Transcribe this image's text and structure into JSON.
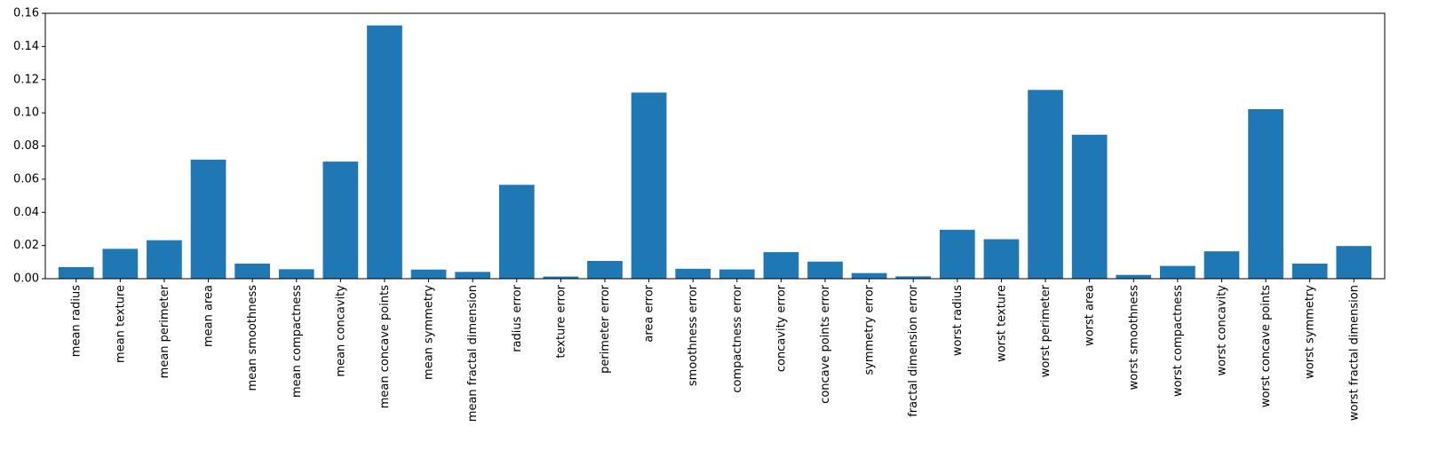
{
  "chart_data": {
    "type": "bar",
    "title": "",
    "xlabel": "",
    "ylabel": "",
    "ylim": [
      0,
      0.16
    ],
    "yticks": [
      "0.00",
      "0.02",
      "0.04",
      "0.06",
      "0.08",
      "0.10",
      "0.12",
      "0.14",
      "0.16"
    ],
    "grid": false,
    "bar_color": "#1f77b4",
    "categories": [
      "mean radius",
      "mean texture",
      "mean perimeter",
      "mean area",
      "mean smoothness",
      "mean compactness",
      "mean concavity",
      "mean concave points",
      "mean symmetry",
      "mean fractal dimension",
      "radius error",
      "texture error",
      "perimeter error",
      "area error",
      "smoothness error",
      "compactness error",
      "concavity error",
      "concave points error",
      "symmetry error",
      "fractal dimension error",
      "worst radius",
      "worst texture",
      "worst perimeter",
      "worst area",
      "worst smoothness",
      "worst compactness",
      "worst concavity",
      "worst concave points",
      "worst symmetry",
      "worst fractal dimension"
    ],
    "values": [
      0.007,
      0.018,
      0.0232,
      0.0718,
      0.0091,
      0.0057,
      0.0706,
      0.1527,
      0.0055,
      0.0041,
      0.0566,
      0.0013,
      0.0107,
      0.1122,
      0.006,
      0.0056,
      0.016,
      0.0103,
      0.0034,
      0.0014,
      0.0295,
      0.0238,
      0.1138,
      0.0868,
      0.0023,
      0.0077,
      0.0165,
      0.1022,
      0.0091,
      0.0197
    ]
  }
}
